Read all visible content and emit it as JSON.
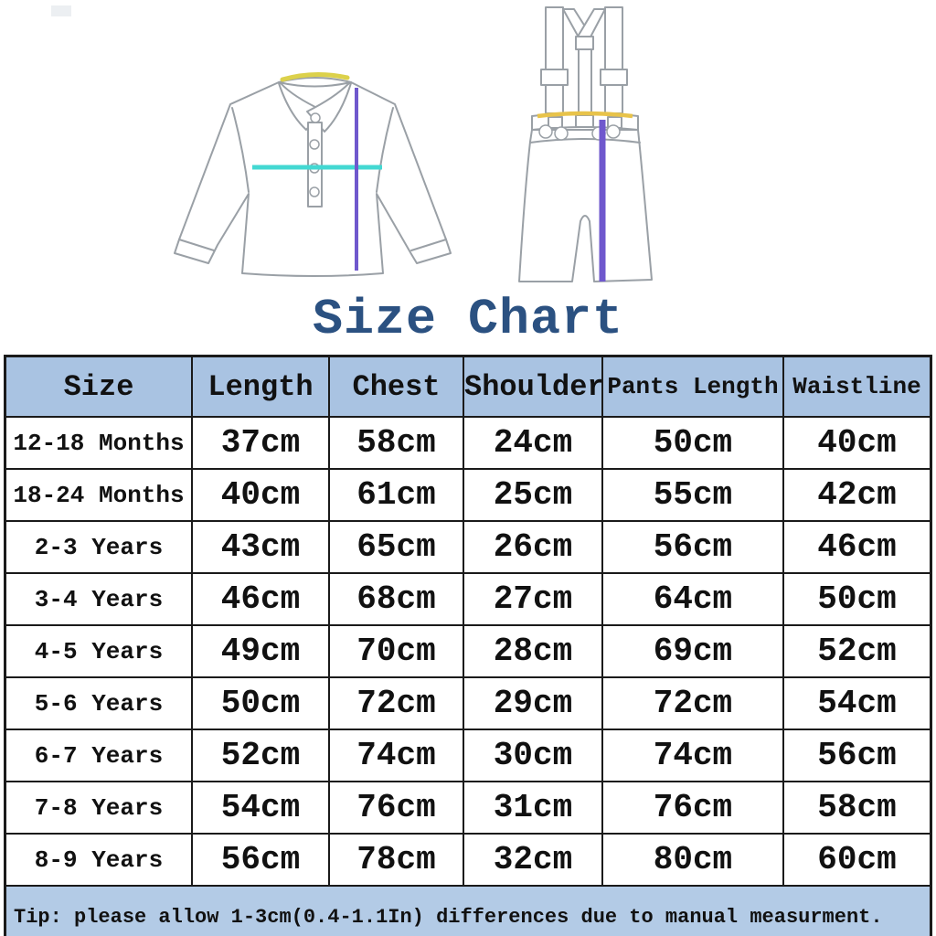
{
  "title": "Size Chart",
  "diagrams": {
    "shirt_icon": "long-sleeve-polo-shirt-diagram",
    "pants_icon": "suspender-pants-diagram",
    "length_line_meaning": "Length",
    "chest_line_meaning": "Chest",
    "shoulder_line_meaning": "Shoulder",
    "waist_line_meaning": "Waistline"
  },
  "chart_data": {
    "type": "table",
    "title": "Size Chart",
    "columns": [
      "Size",
      "Length",
      "Chest",
      "Shoulder",
      "Pants Length",
      "Waistline"
    ],
    "rows": [
      [
        "12-18 Months",
        "37cm",
        "58cm",
        "24cm",
        "50cm",
        "40cm"
      ],
      [
        "18-24 Months",
        "40cm",
        "61cm",
        "25cm",
        "55cm",
        "42cm"
      ],
      [
        "2-3 Years",
        "43cm",
        "65cm",
        "26cm",
        "56cm",
        "46cm"
      ],
      [
        "3-4 Years",
        "46cm",
        "68cm",
        "27cm",
        "64cm",
        "50cm"
      ],
      [
        "4-5 Years",
        "49cm",
        "70cm",
        "28cm",
        "69cm",
        "52cm"
      ],
      [
        "5-6 Years",
        "50cm",
        "72cm",
        "29cm",
        "72cm",
        "54cm"
      ],
      [
        "6-7 Years",
        "52cm",
        "74cm",
        "30cm",
        "74cm",
        "56cm"
      ],
      [
        "7-8 Years",
        "54cm",
        "76cm",
        "31cm",
        "76cm",
        "58cm"
      ],
      [
        "8-9 Years",
        "56cm",
        "78cm",
        "32cm",
        "80cm",
        "60cm"
      ]
    ],
    "footer": "Tip: please allow 1-3cm(0.4-1.1In) differences due to manual measurment.",
    "legend_position": "none",
    "grid": true
  },
  "colors": {
    "title": "#2b5181",
    "table_header_bg": "#a9c3e2",
    "tip_bg": "#b3cbe6",
    "border": "#1a1a1a",
    "bottom_bar": "#141d2e",
    "length_line": "#6f58cd",
    "chest_line": "#43d8d2",
    "shoulder_line": "#dcd14b",
    "waist_line": "#e8c34a",
    "garment_outline": "#9aa0a6"
  }
}
